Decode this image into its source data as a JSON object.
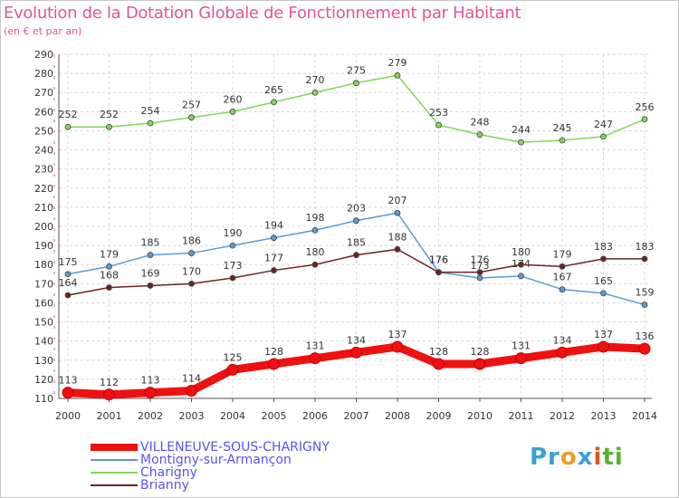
{
  "title": "Evolution de la Dotation Globale de Fonctionnement par Habitant",
  "subtitle": "(en € et par an)",
  "logo": {
    "text": "Proxiti",
    "parts": [
      "Pr",
      "o",
      "x",
      "i",
      "ti"
    ]
  },
  "chart_data": {
    "type": "line",
    "title": "Evolution de la Dotation Globale de Fonctionnement par Habitant",
    "subtitle": "(en € et par an)",
    "xlabel": "",
    "ylabel": "",
    "x": [
      "2000",
      "2001",
      "2002",
      "2003",
      "2004",
      "2005",
      "2006",
      "2007",
      "2008",
      "2009",
      "2010",
      "2011",
      "2012",
      "2013",
      "2014"
    ],
    "ylim": [
      110,
      290
    ],
    "yticks": [
      110,
      120,
      130,
      140,
      150,
      160,
      170,
      180,
      190,
      200,
      210,
      220,
      230,
      240,
      250,
      260,
      270,
      280,
      290
    ],
    "grid": true,
    "legend_position": "bottom",
    "series": [
      {
        "name": "VILLENEUVE-SOUS-CHARIGNY",
        "color": "#ee1111",
        "emphasis": true,
        "values": [
          113,
          112,
          113,
          114,
          125,
          128,
          131,
          134,
          137,
          128,
          128,
          131,
          134,
          137,
          136
        ]
      },
      {
        "name": "Montigny-sur-Armançon",
        "color": "#5b9bd5",
        "emphasis": false,
        "values": [
          175,
          179,
          185,
          186,
          190,
          194,
          198,
          203,
          207,
          176,
          173,
          174,
          167,
          165,
          159
        ]
      },
      {
        "name": "Charigny",
        "color": "#86d35a",
        "emphasis": false,
        "values": [
          252,
          252,
          254,
          257,
          260,
          265,
          270,
          275,
          279,
          253,
          248,
          244,
          245,
          247,
          256
        ]
      },
      {
        "name": "Brianny",
        "color": "#6b2424",
        "emphasis": false,
        "values": [
          164,
          168,
          169,
          170,
          173,
          177,
          180,
          185,
          188,
          176,
          176,
          180,
          179,
          183,
          183
        ]
      }
    ]
  }
}
